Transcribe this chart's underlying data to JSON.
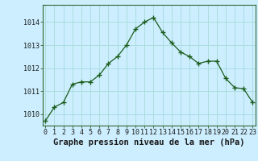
{
  "x": [
    0,
    1,
    2,
    3,
    4,
    5,
    6,
    7,
    8,
    9,
    10,
    11,
    12,
    13,
    14,
    15,
    16,
    17,
    18,
    19,
    20,
    21,
    22,
    23
  ],
  "y": [
    1009.7,
    1010.3,
    1010.5,
    1011.3,
    1011.4,
    1011.4,
    1011.7,
    1012.2,
    1012.5,
    1013.0,
    1013.7,
    1014.0,
    1014.2,
    1013.55,
    1013.1,
    1012.7,
    1012.5,
    1012.2,
    1012.3,
    1012.3,
    1011.55,
    1011.15,
    1011.1,
    1010.5
  ],
  "line_color": "#1a5c1a",
  "marker": "+",
  "marker_size": 4,
  "bg_color": "#cceeff",
  "grid_color": "#aadddd",
  "xlabel": "Graphe pression niveau de la mer (hPa)",
  "ylim": [
    1009.5,
    1014.75
  ],
  "yticks": [
    1010,
    1011,
    1012,
    1013,
    1014
  ],
  "xticks": [
    0,
    1,
    2,
    3,
    4,
    5,
    6,
    7,
    8,
    9,
    10,
    11,
    12,
    13,
    14,
    15,
    16,
    17,
    18,
    19,
    20,
    21,
    22,
    23
  ],
  "xtick_labels": [
    "0",
    "1",
    "2",
    "3",
    "4",
    "5",
    "6",
    "7",
    "8",
    "9",
    "10",
    "11",
    "12",
    "13",
    "14",
    "15",
    "16",
    "17",
    "18",
    "19",
    "20",
    "21",
    "22",
    "23"
  ],
  "label_fontsize": 7.5,
  "tick_fontsize": 6,
  "border_color": "#336633"
}
